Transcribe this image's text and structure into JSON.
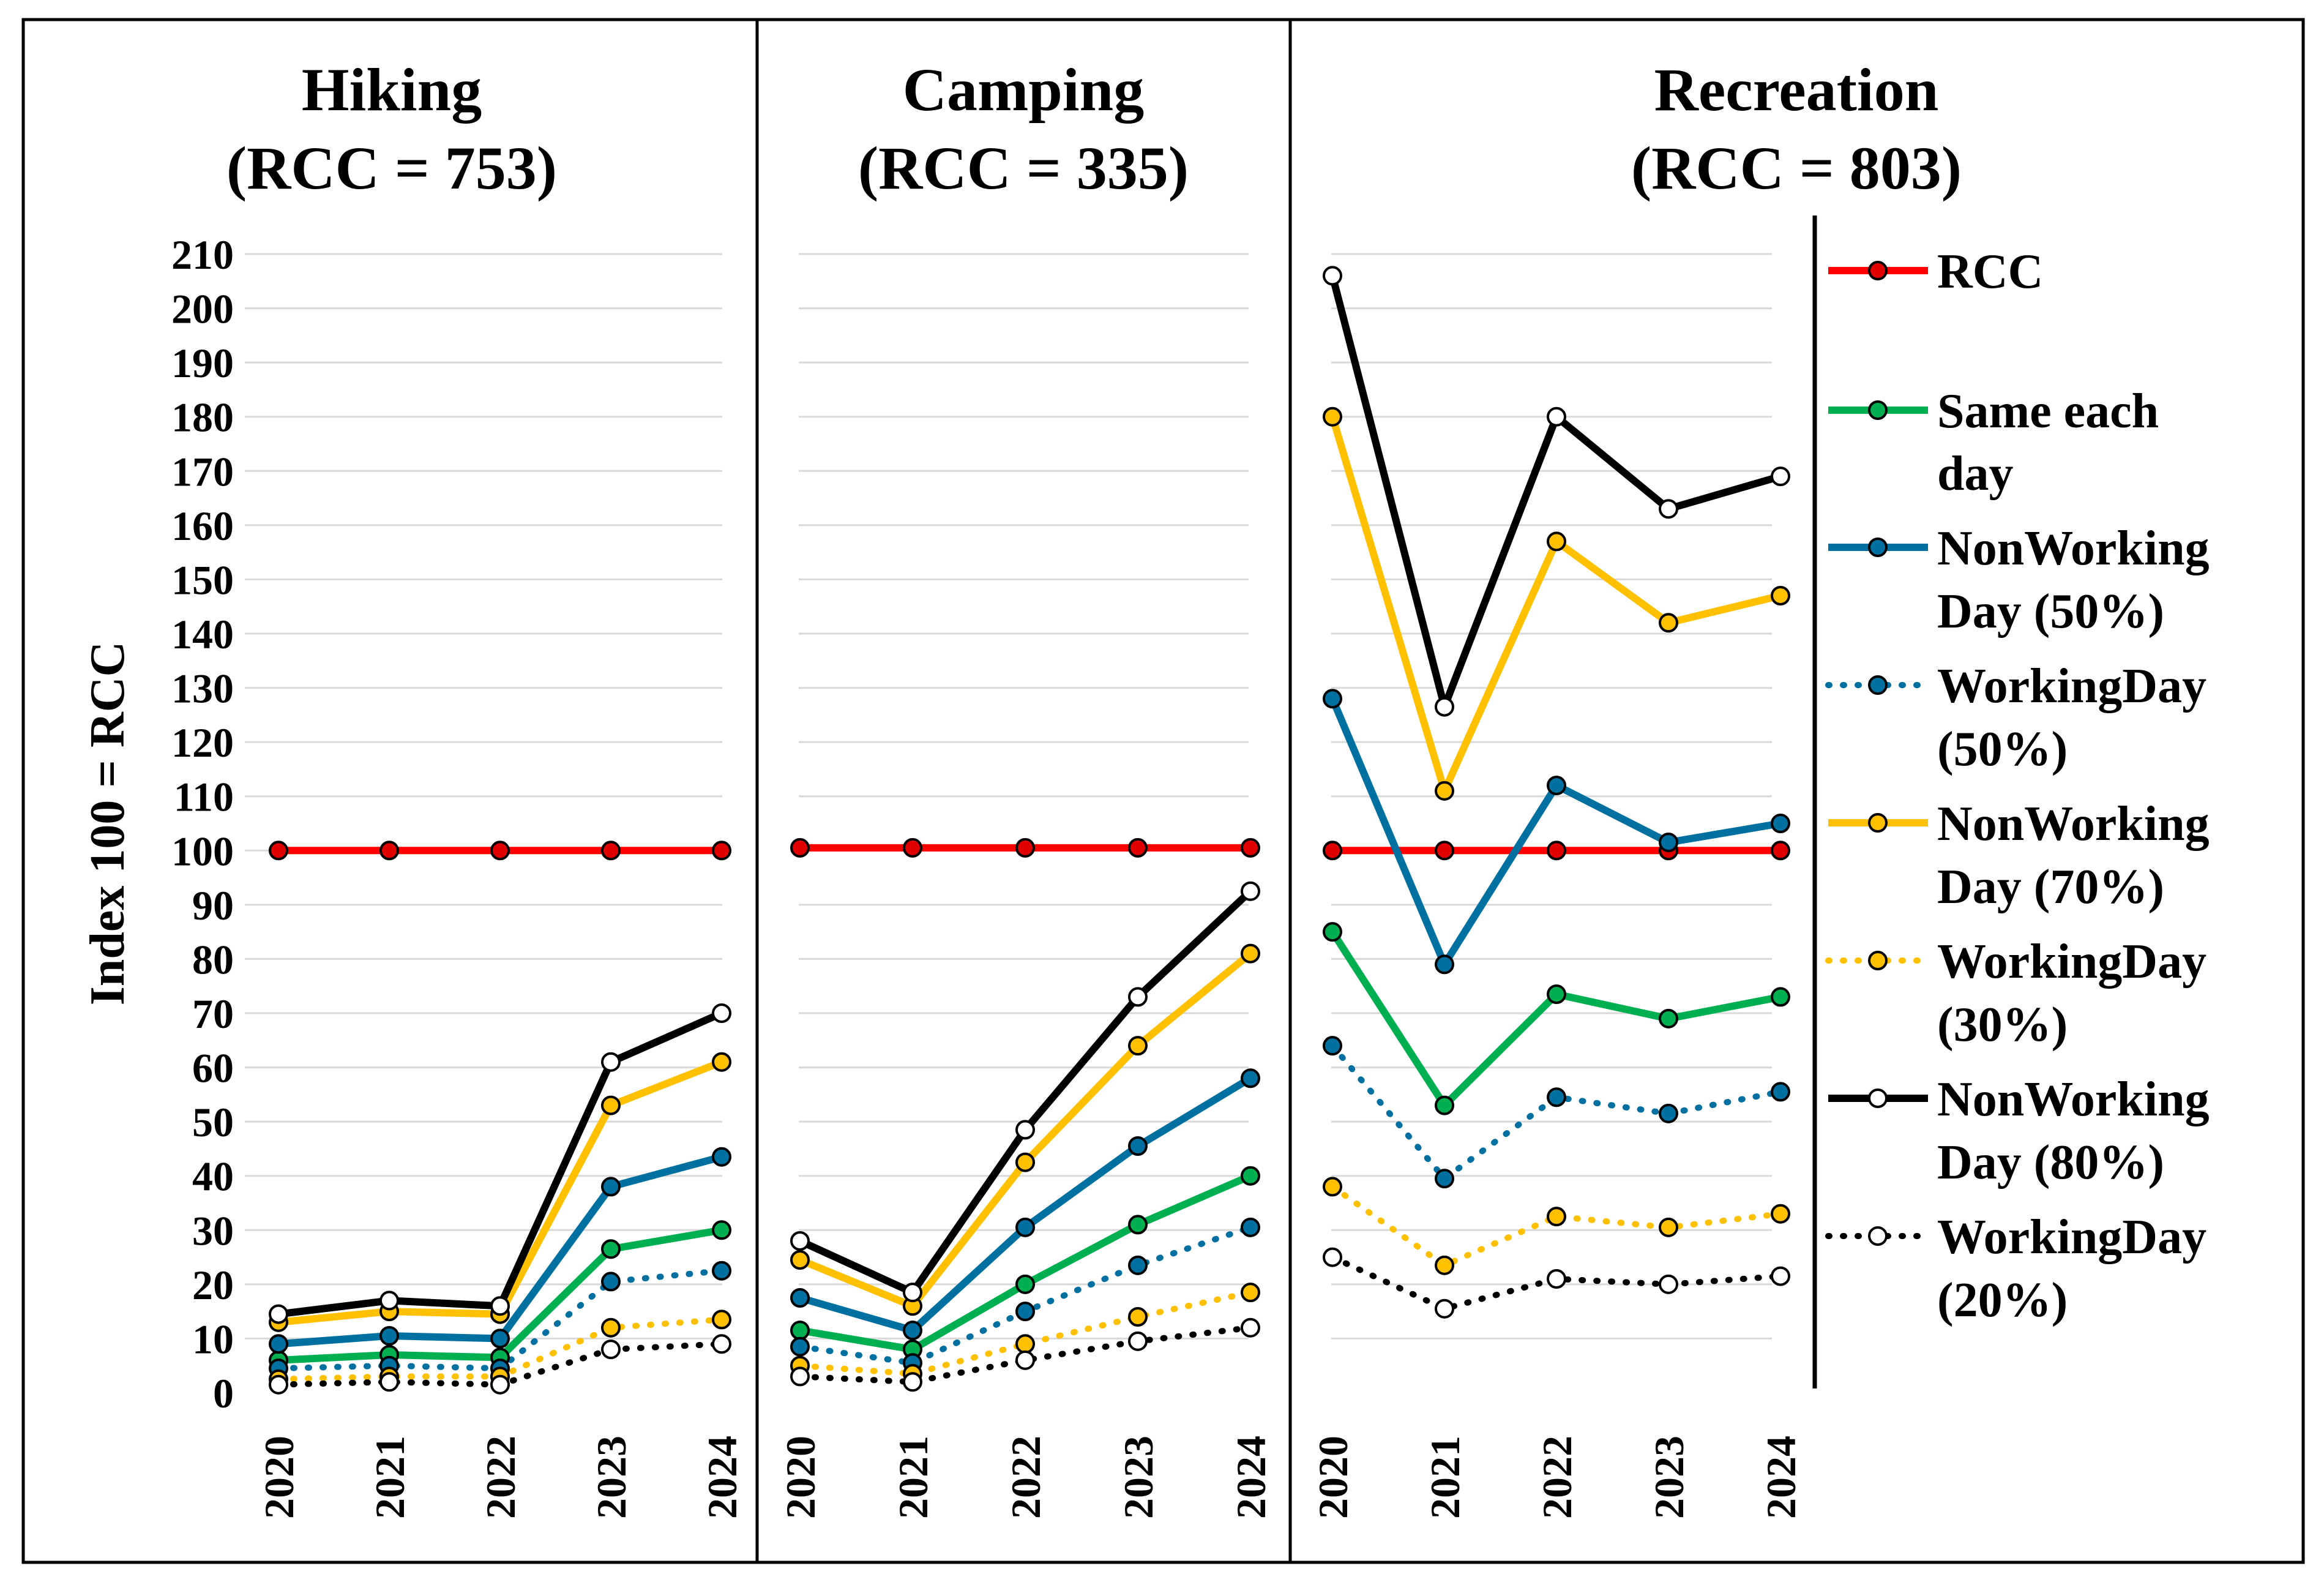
{
  "chart_data": {
    "type": "line",
    "ylabel": "Index 100 = RCC",
    "ylim": [
      0,
      210
    ],
    "yticks": [
      "0",
      "10",
      "20",
      "30",
      "40",
      "50",
      "60",
      "70",
      "80",
      "90",
      "100",
      "110",
      "120",
      "130",
      "140",
      "150",
      "160",
      "170",
      "180",
      "190",
      "200",
      "210"
    ],
    "categories": [
      "2020",
      "2021",
      "2022",
      "2023",
      "2024"
    ],
    "grid": true,
    "legend_position": "right",
    "legend": [
      {
        "lines": [
          "RCC"
        ]
      },
      {
        "lines": [
          "Same each",
          "day"
        ]
      },
      {
        "lines": [
          "NonWorking",
          "Day (50%)"
        ]
      },
      {
        "lines": [
          "WorkingDay",
          "(50%)"
        ]
      },
      {
        "lines": [
          "NonWorking",
          "Day (70%)"
        ]
      },
      {
        "lines": [
          "WorkingDay",
          "(30%)"
        ]
      },
      {
        "lines": [
          "NonWorking",
          "Day (80%)"
        ]
      },
      {
        "lines": [
          "WorkingDay",
          "(20%)"
        ]
      }
    ],
    "series_styles": [
      {
        "name": "RCC",
        "color": "#ff0000",
        "marker": "#e00000",
        "dashed": false
      },
      {
        "name": "Same each day",
        "color": "#00b050",
        "marker": "#00b050",
        "dashed": false
      },
      {
        "name": "NonWorking Day (50%)",
        "color": "#0070a0",
        "marker": "#0070a0",
        "dashed": false
      },
      {
        "name": "WorkingDay (50%)",
        "color": "#0070a0",
        "marker": "#0070a0",
        "dashed": true
      },
      {
        "name": "NonWorking Day (70%)",
        "color": "#ffc000",
        "marker": "#ffc000",
        "dashed": false
      },
      {
        "name": "WorkingDay (30%)",
        "color": "#ffc000",
        "marker": "#ffc000",
        "dashed": true
      },
      {
        "name": "NonWorking Day (80%)",
        "color": "#000000",
        "marker": "#ffffff",
        "dashed": false
      },
      {
        "name": "WorkingDay (20%)",
        "color": "#000000",
        "marker": "#ffffff",
        "dashed": true
      }
    ],
    "panels": [
      {
        "title_lines": [
          "Hiking",
          "(RCC = 753)"
        ],
        "series": [
          {
            "name": "RCC",
            "values": [
              100,
              100,
              100,
              100,
              100
            ]
          },
          {
            "name": "Same each day",
            "values": [
              6,
              7,
              6.5,
              26.5,
              30
            ]
          },
          {
            "name": "NonWorking Day (50%)",
            "values": [
              9,
              10.5,
              10,
              38,
              43.5
            ]
          },
          {
            "name": "WorkingDay (50%)",
            "values": [
              4.5,
              5,
              4.5,
              20.5,
              22.5
            ]
          },
          {
            "name": "NonWorking Day (70%)",
            "values": [
              13,
              15,
              14.5,
              53,
              61
            ]
          },
          {
            "name": "WorkingDay (30%)",
            "values": [
              2.5,
              3,
              3,
              12,
              13.5
            ]
          },
          {
            "name": "NonWorking Day (80%)",
            "values": [
              14.5,
              17,
              16,
              61,
              70
            ]
          },
          {
            "name": "WorkingDay (20%)",
            "values": [
              1.5,
              2,
              1.5,
              8,
              9
            ]
          }
        ]
      },
      {
        "title_lines": [
          "Camping",
          "(RCC = 335)"
        ],
        "series": [
          {
            "name": "RCC",
            "values": [
              100.5,
              100.5,
              100.5,
              100.5,
              100.5
            ]
          },
          {
            "name": "Same each day",
            "values": [
              11.5,
              8,
              20,
              31,
              40
            ]
          },
          {
            "name": "NonWorking Day (50%)",
            "values": [
              17.5,
              11.5,
              30.5,
              45.5,
              58
            ]
          },
          {
            "name": "WorkingDay (50%)",
            "values": [
              8.5,
              5.5,
              15,
              23.5,
              30.5
            ]
          },
          {
            "name": "NonWorking Day (70%)",
            "values": [
              24.5,
              16,
              42.5,
              64,
              81
            ]
          },
          {
            "name": "WorkingDay (30%)",
            "values": [
              5,
              3.5,
              9,
              14,
              18.5
            ]
          },
          {
            "name": "NonWorking Day (80%)",
            "values": [
              28,
              18.5,
              48.5,
              73,
              92.5
            ]
          },
          {
            "name": "WorkingDay (20%)",
            "values": [
              3,
              2,
              6,
              9.5,
              12
            ]
          }
        ]
      },
      {
        "title_lines": [
          "Recreation",
          "(RCC = 803)"
        ],
        "series": [
          {
            "name": "RCC",
            "values": [
              100,
              100,
              100,
              100,
              100
            ]
          },
          {
            "name": "Same each day",
            "values": [
              85,
              53,
              73.5,
              69,
              73
            ]
          },
          {
            "name": "NonWorking Day (50%)",
            "values": [
              128,
              79,
              112,
              101.5,
              105
            ]
          },
          {
            "name": "WorkingDay (50%)",
            "values": [
              64,
              39.5,
              54.5,
              51.5,
              55.5
            ]
          },
          {
            "name": "NonWorking Day (70%)",
            "values": [
              180,
              111,
              157,
              142,
              147
            ]
          },
          {
            "name": "WorkingDay (30%)",
            "values": [
              38,
              23.5,
              32.5,
              30.5,
              33
            ]
          },
          {
            "name": "NonWorking Day (80%)",
            "values": [
              206,
              126.5,
              180,
              163,
              169
            ]
          },
          {
            "name": "WorkingDay (20%)",
            "values": [
              25,
              15.5,
              21,
              20,
              21.5
            ]
          }
        ]
      }
    ]
  }
}
